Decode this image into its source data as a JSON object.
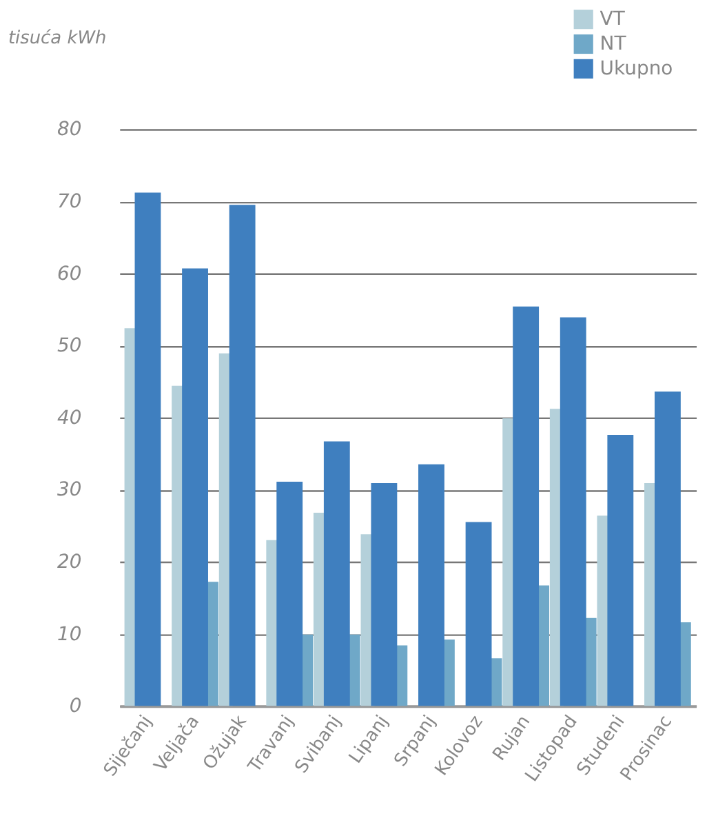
{
  "chart_data": {
    "type": "bar",
    "ylabel": "tisuća kWh",
    "categories": [
      "Siječanj",
      "Veljača",
      "Ožujak",
      "Travanj",
      "Svibanj",
      "Lipanj",
      "Srpanj",
      "Kolovoz",
      "Rujan",
      "Listopad",
      "Studeni",
      "Prosinac"
    ],
    "series": [
      {
        "name": "VT",
        "color": "#b4d0da",
        "values": [
          52.4,
          44.4,
          48.9,
          23.0,
          26.8,
          23.8,
          null,
          null,
          39.9,
          41.2,
          26.4,
          30.9
        ]
      },
      {
        "name": "NT",
        "color": "#6fa8c8",
        "values": [
          null,
          17.2,
          null,
          9.9,
          9.9,
          8.4,
          9.2,
          6.6,
          16.7,
          12.2,
          null,
          11.6
        ]
      },
      {
        "name": "Ukupno",
        "color": "#3f7fbf",
        "values": [
          71.2,
          60.7,
          69.5,
          31.1,
          36.7,
          30.9,
          33.5,
          25.5,
          55.4,
          53.9,
          37.6,
          43.6
        ]
      }
    ],
    "ylim": [
      0,
      80
    ],
    "yticks": [
      0,
      10,
      20,
      30,
      40,
      50,
      60,
      70,
      80
    ],
    "grid": "y",
    "legend": "top right"
  }
}
